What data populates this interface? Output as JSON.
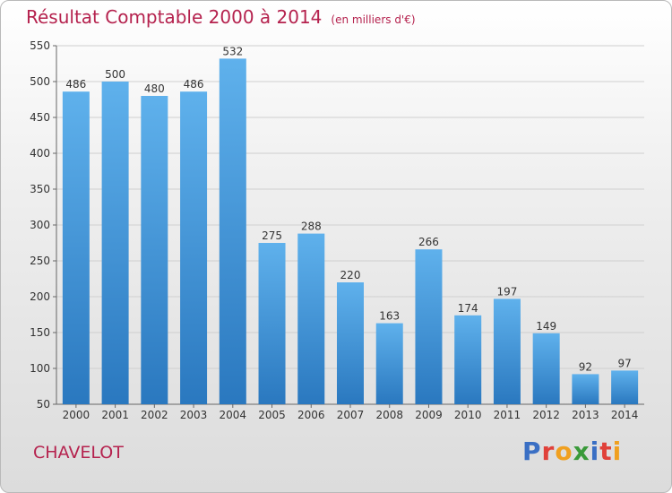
{
  "header": {
    "title": "Résultat Comptable 2000 à 2014",
    "subtitle": "(en milliers d'€)"
  },
  "footer": {
    "commune": "CHAVELOT",
    "logo_letters": [
      {
        "ch": "P",
        "color": "#3a6fc4"
      },
      {
        "ch": "r",
        "color": "#e0413a"
      },
      {
        "ch": "o",
        "color": "#f0a020"
      },
      {
        "ch": "x",
        "color": "#3a9a3a"
      },
      {
        "ch": "i",
        "color": "#3a6fc4"
      },
      {
        "ch": "t",
        "color": "#e0413a"
      },
      {
        "ch": "i",
        "color": "#f0a020"
      }
    ]
  },
  "chart_data": {
    "type": "bar",
    "title": "Résultat Comptable 2000 à 2014",
    "subtitle": "(en milliers d'€)",
    "xlabel": "",
    "ylabel": "",
    "categories": [
      "2000",
      "2001",
      "2002",
      "2003",
      "2004",
      "2005",
      "2006",
      "2007",
      "2008",
      "2009",
      "2010",
      "2011",
      "2012",
      "2013",
      "2014"
    ],
    "values": [
      486,
      500,
      480,
      486,
      532,
      275,
      288,
      220,
      163,
      266,
      174,
      197,
      149,
      92,
      97
    ],
    "ylim": [
      50,
      550
    ],
    "yticks": [
      50,
      100,
      150,
      200,
      250,
      300,
      350,
      400,
      450,
      500,
      550
    ],
    "grid": true,
    "bar_color": "#3d8fd6"
  }
}
